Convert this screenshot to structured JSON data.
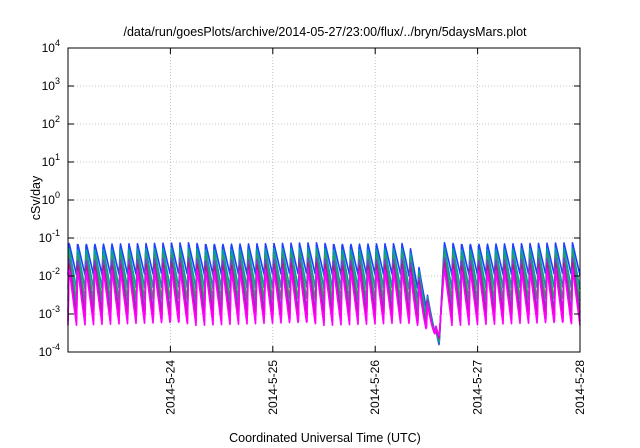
{
  "chart_data": {
    "type": "line",
    "title": "/data/run/goesPlots/archive/2014-05-27/23:00/flux/../bryn/5daysMars.plot",
    "xlabel": "Coordinated Universal Time (UTC)",
    "ylabel": "cSv/day",
    "x_range": [
      "2014-05-23 00:00",
      "2014-05-28 00:00"
    ],
    "x_ticks": [
      "2014-5-24",
      "2014-5-25",
      "2014-5-26",
      "2014-5-27",
      "2014-5-28"
    ],
    "y_scale": "log",
    "ylim": [
      0.0001,
      10000
    ],
    "y_ticks": [
      {
        "base": "10",
        "exp": "-4"
      },
      {
        "base": "10",
        "exp": "-3"
      },
      {
        "base": "10",
        "exp": "-2"
      },
      {
        "base": "10",
        "exp": "-1"
      },
      {
        "base": "10",
        "exp": "0"
      },
      {
        "base": "10",
        "exp": "1"
      },
      {
        "base": "10",
        "exp": "2"
      },
      {
        "base": "10",
        "exp": "3"
      },
      {
        "base": "10",
        "exp": "4"
      }
    ],
    "grid": true,
    "legend": "none",
    "sawtooth_period_hours": 2.0,
    "dip_event": {
      "time": "2014-05-26 15:00",
      "min_value": 0.00015
    },
    "series": [
      {
        "color": "#1f3fff",
        "peak": 0.075,
        "trough": 0.0105
      },
      {
        "color": "#00a0a0",
        "peak": 0.055,
        "trough": 0.0045
      },
      {
        "color": "#2d9f5a",
        "peak": 0.04,
        "trough": 0.0022
      },
      {
        "color": "#7a3fd0",
        "peak": 0.03,
        "trough": 0.0011
      },
      {
        "color": "#c0108c",
        "peak": 0.022,
        "trough": 0.00065
      },
      {
        "color": "#ff00ff",
        "peak": 0.016,
        "trough": 0.0005
      }
    ]
  }
}
